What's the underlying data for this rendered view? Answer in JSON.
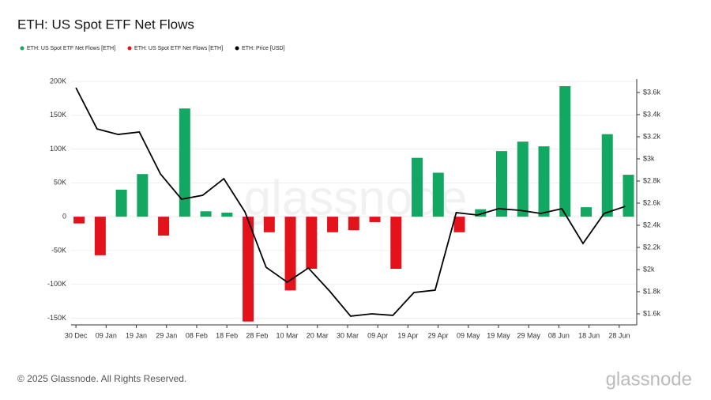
{
  "chart_data": {
    "type": "bar",
    "title": "ETH: US Spot ETF Net Flows",
    "x": [
      0,
      7,
      14,
      21,
      28,
      35,
      42,
      49,
      56,
      63,
      70,
      77,
      84,
      91,
      98,
      105,
      112,
      119,
      126,
      133,
      140,
      147,
      154,
      161,
      168,
      175,
      182
    ],
    "xlim": [
      -1.6,
      185.8
    ],
    "xticks": [
      {
        "value": 0,
        "label": "30 Dec"
      },
      {
        "value": 10,
        "label": "09 Jan"
      },
      {
        "value": 20,
        "label": "19 Jan"
      },
      {
        "value": 30,
        "label": "29 Jan"
      },
      {
        "value": 40,
        "label": "08 Feb"
      },
      {
        "value": 50,
        "label": "18 Feb"
      },
      {
        "value": 60,
        "label": "28 Feb"
      },
      {
        "value": 70,
        "label": "10 Mar"
      },
      {
        "value": 80,
        "label": "20 Mar"
      },
      {
        "value": 90,
        "label": "30 Mar"
      },
      {
        "value": 100,
        "label": "09 Apr"
      },
      {
        "value": 110,
        "label": "19 Apr"
      },
      {
        "value": 120,
        "label": "29 Apr"
      },
      {
        "value": 130,
        "label": "09 May"
      },
      {
        "value": 140,
        "label": "19 May"
      },
      {
        "value": 150,
        "label": "29 May"
      },
      {
        "value": 160,
        "label": "08 Jun"
      },
      {
        "value": 170,
        "label": "18 Jun"
      },
      {
        "value": 180,
        "label": "28 Jun"
      }
    ],
    "ylim": [
      -160000,
      200000
    ],
    "yticks": [
      {
        "value": 200000,
        "label": "200K"
      },
      {
        "value": 150000,
        "label": "150K"
      },
      {
        "value": 100000,
        "label": "100K"
      },
      {
        "value": 50000,
        "label": "50K"
      },
      0,
      {
        "value": -50000,
        "label": "-50K"
      },
      {
        "value": -100000,
        "label": "-100K"
      },
      {
        "value": -150000,
        "label": "-150K"
      }
    ],
    "y2lim": [
      1500,
      3700
    ],
    "y2ticks": [
      {
        "value": 1600,
        "label": "$1.6k"
      },
      {
        "value": 1800,
        "label": "$1.8k"
      },
      {
        "value": 2000,
        "label": "$2k"
      },
      {
        "value": 2200,
        "label": "$2.2k"
      },
      {
        "value": 2400,
        "label": "$2.4k"
      },
      {
        "value": 2600,
        "label": "$2.6k"
      },
      {
        "value": 2800,
        "label": "$2.8k"
      },
      {
        "value": 3000,
        "label": "$3k"
      },
      {
        "value": 3200,
        "label": "$3.2k"
      },
      {
        "value": 3400,
        "label": "$3.4k"
      },
      {
        "value": 3600,
        "label": "$3.6k"
      }
    ],
    "grid": true,
    "series": [
      {
        "name": "ETH: US Spot ETF Net Flows [ETH]",
        "type": "bar",
        "color": "#12a862",
        "values": [
          null,
          null,
          40000,
          63000,
          null,
          160000,
          8000,
          6000,
          null,
          null,
          null,
          null,
          null,
          null,
          null,
          null,
          87000,
          65000,
          null,
          11000,
          97000,
          111000,
          104000,
          193000,
          14000,
          122000,
          62000
        ]
      },
      {
        "name": "ETH: US Spot ETF Net Flows [ETH]",
        "type": "bar",
        "color": "#e3121b",
        "values": [
          -10000,
          -57000,
          null,
          null,
          -28000,
          null,
          null,
          null,
          -155000,
          -23000,
          -109000,
          -77000,
          -23000,
          -20000,
          -8000,
          -77000,
          null,
          null,
          -23000,
          null,
          null,
          null,
          null,
          null,
          null,
          null,
          null
        ]
      },
      {
        "name": "ETH: Price [USD]",
        "type": "line",
        "color": "#000000",
        "axis": "y2",
        "values": [
          3643,
          3271,
          3221,
          3243,
          2864,
          2636,
          2671,
          2821,
          2521,
          2021,
          1886,
          2014,
          1807,
          1579,
          1600,
          1586,
          1793,
          1814,
          2514,
          2493,
          2550,
          2536,
          2507,
          2550,
          2236,
          2507,
          2571
        ]
      }
    ]
  },
  "watermark": "glassnode",
  "footer": {
    "copyright": "© 2025 Glassnode. All Rights Reserved.",
    "logo": "glassnode"
  }
}
